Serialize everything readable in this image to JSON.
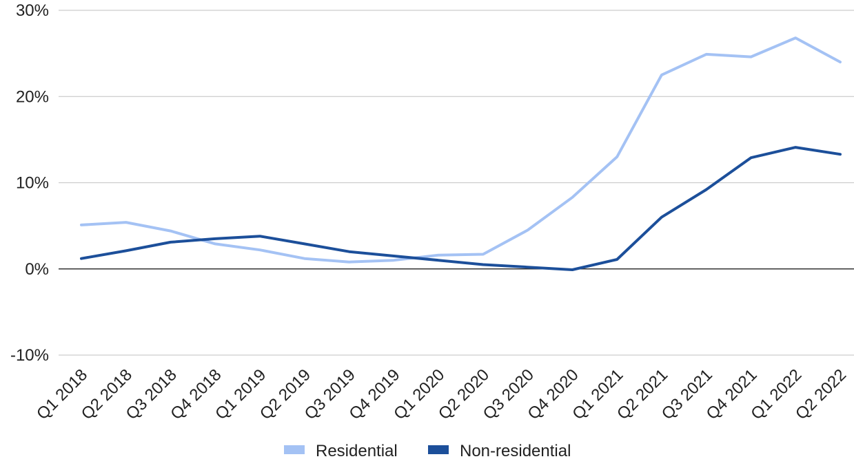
{
  "chart_data": {
    "type": "line",
    "title": "",
    "xlabel": "",
    "ylabel": "",
    "ylim": [
      -10,
      30
    ],
    "y_ticks": [
      -10,
      0,
      10,
      20,
      30
    ],
    "y_tick_labels": [
      "-10%",
      "0%",
      "10%",
      "20%",
      "30%"
    ],
    "grid": true,
    "legend_position": "bottom",
    "categories": [
      "Q1 2018",
      "Q2 2018",
      "Q3 2018",
      "Q4 2018",
      "Q1 2019",
      "Q2 2019",
      "Q3 2019",
      "Q4 2019",
      "Q1 2020",
      "Q2 2020",
      "Q3 2020",
      "Q4 2020",
      "Q1 2021",
      "Q2 2021",
      "Q3 2021",
      "Q4 2021",
      "Q1 2022",
      "Q2 2022"
    ],
    "series": [
      {
        "name": "Residential",
        "color": "#a4c2f4",
        "values": [
          5.1,
          5.4,
          4.4,
          2.9,
          2.2,
          1.2,
          0.8,
          1.0,
          1.6,
          1.7,
          4.5,
          8.3,
          13.0,
          22.5,
          24.9,
          24.6,
          26.8,
          24.0
        ]
      },
      {
        "name": "Non-residential",
        "color": "#1c4f9a",
        "values": [
          1.2,
          2.1,
          3.1,
          3.5,
          3.8,
          2.9,
          2.0,
          1.5,
          1.0,
          0.5,
          0.2,
          -0.1,
          1.1,
          6.0,
          9.2,
          12.9,
          14.1,
          13.3
        ]
      }
    ]
  }
}
